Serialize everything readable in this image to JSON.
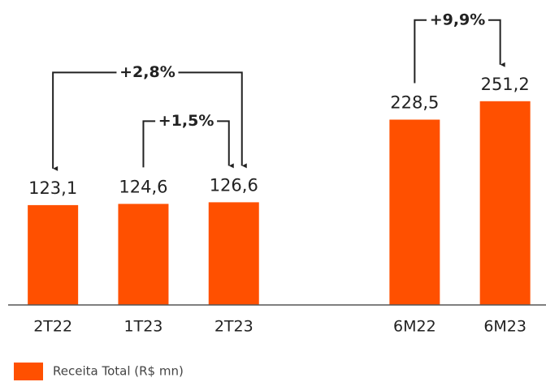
{
  "chart_data": {
    "type": "bar",
    "categories": [
      "2T22",
      "1T23",
      "2T23",
      null,
      "6M22",
      "6M23"
    ],
    "series": [
      {
        "name": "Receita Total (R$ mn)",
        "color": "#ff5000",
        "values": [
          123.1,
          124.6,
          126.6,
          null,
          228.5,
          251.2
        ],
        "value_labels": [
          "123,1",
          "124,6",
          "126,6",
          null,
          "228,5",
          "251,2"
        ]
      }
    ],
    "ylim": [
      0,
      300
    ],
    "annotations": [
      {
        "text": "+2,8%",
        "from": "2T22",
        "to": "2T23"
      },
      {
        "text": "+1,5%",
        "from": "1T23",
        "to": "2T23"
      },
      {
        "text": "+9,9%",
        "from": "6M22",
        "to": "6M23"
      }
    ],
    "legend": "bottom-left"
  }
}
